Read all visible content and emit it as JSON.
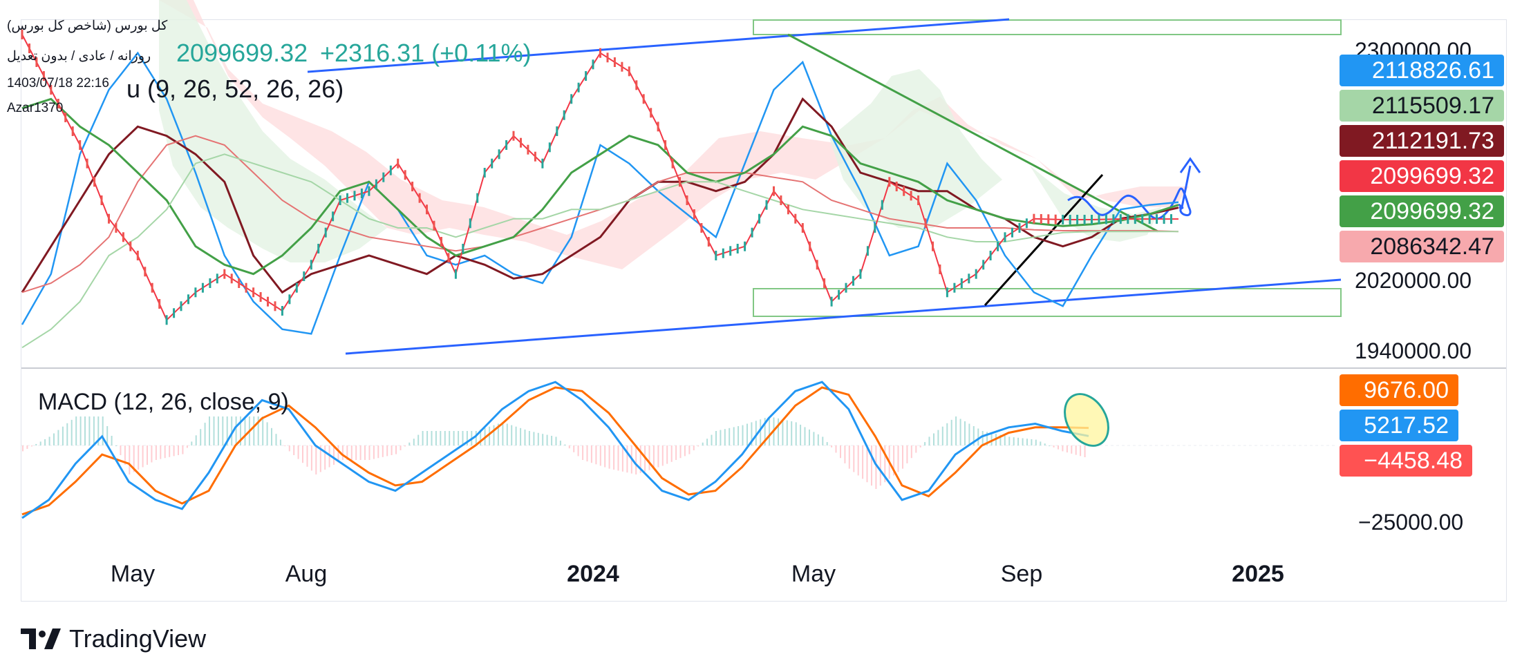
{
  "header": {
    "symbol_fa": "(کل بورس (شاخص کل بورس",
    "interval_fa": "روزانه / عادی / بدون تعدیل",
    "datetime": "1403/07/18 22:16",
    "author": "Azar1370",
    "price": "2099699.32",
    "change": "+2316.31 (+0.11%)",
    "ichimoku_label": "u (9, 26, 52, 26, 26)",
    "macd_label": "MACD (12, 26, close, 9)"
  },
  "price_axis": {
    "ticks": [
      "2300000.00",
      "2020000.00",
      "1940000.00"
    ],
    "badges": [
      {
        "value": "2118826.61",
        "color": "#2196f3"
      },
      {
        "value": "2115509.17",
        "color": "#a5d6a7"
      },
      {
        "value": "2112191.73",
        "color": "#801922"
      },
      {
        "value": "2099699.32",
        "color": "#f23645"
      },
      {
        "value": "2099699.32",
        "color": "#43a047"
      },
      {
        "value": "2086342.47",
        "color": "#f7a9ad"
      }
    ]
  },
  "macd_axis": {
    "ticks": [
      "−25000.00"
    ],
    "badges": [
      {
        "value": "9676.00",
        "color": "#ff6d00"
      },
      {
        "value": "5217.52",
        "color": "#2196f3"
      },
      {
        "value": "−4458.48",
        "color": "#ff5252"
      }
    ]
  },
  "time_axis": {
    "labels": [
      {
        "text": "May",
        "bold": false
      },
      {
        "text": "Aug",
        "bold": false
      },
      {
        "text": "2024",
        "bold": true
      },
      {
        "text": "May",
        "bold": false
      },
      {
        "text": "Sep",
        "bold": false
      },
      {
        "text": "2025",
        "bold": true
      }
    ]
  },
  "brand": {
    "name": "TradingView"
  },
  "chart_data": {
    "type": "line",
    "xlabel": "",
    "ylabel": "",
    "series": [
      {
        "values": [
          1985000,
          2040000,
          2170000,
          2240000,
          2280000,
          2230000,
          2150000,
          2060000,
          2010000,
          1980000,
          1975000,
          2060000,
          2140000,
          2110000,
          2060000,
          2050000,
          2060000,
          2040000,
          2030000,
          2080000,
          2180000,
          2160000,
          2130000,
          2105000,
          2080000,
          2160000,
          2240000,
          2270000,
          2190000,
          2130000,
          2060000,
          2070000,
          2160000,
          2120000,
          2060000,
          2020000,
          2005000,
          2060000,
          2110000,
          2115000,
          2118000
        ]
      },
      {
        "values": [
          2020000,
          2070000,
          2120000,
          2170000,
          2200000,
          2190000,
          2170000,
          2140000,
          2060000,
          2020000,
          2040000,
          2050000,
          2060000,
          2050000,
          2040000,
          2060000,
          2050000,
          2035000,
          2040000,
          2060000,
          2080000,
          2120000,
          2140000,
          2140000,
          2130000,
          2140000,
          2170000,
          2230000,
          2200000,
          2150000,
          2140000,
          2130000,
          2130000,
          2110000,
          2100000,
          2080000,
          2070000,
          2080000,
          2100000,
          2105000,
          2112000
        ]
      },
      {
        "values": [
          2020000,
          2030000,
          2050000,
          2080000,
          2140000,
          2180000,
          2190000,
          2180000,
          2150000,
          2120000,
          2100000,
          2090000,
          2080000,
          2075000,
          2070000,
          2065000,
          2070000,
          2080000,
          2090000,
          2100000,
          2110000,
          2120000,
          2140000,
          2150000,
          2150000,
          2150000,
          2145000,
          2140000,
          2120000,
          2110000,
          2100000,
          2095000,
          2090000,
          2090000,
          2090000,
          2088000,
          2087000,
          2087000,
          2087000,
          2087000,
          2086000
        ]
      },
      {
        "values": [
          2220000,
          2230000,
          2200000,
          2180000,
          2150000,
          2120000,
          2070000,
          2050000,
          2040000,
          2060000,
          2090000,
          2130000,
          2140000,
          2110000,
          2080000,
          2060000,
          2070000,
          2080000,
          2110000,
          2150000,
          2170000,
          2190000,
          2180000,
          2150000,
          2140000,
          2150000,
          2170000,
          2200000,
          2190000,
          2160000,
          2150000,
          2140000,
          2120000,
          2110000,
          2100000,
          2095000,
          2092000,
          2094000,
          2098000,
          2105000,
          2115000
        ]
      },
      {
        "values": [
          1960000,
          1980000,
          2010000,
          2060000,
          2080000,
          2110000,
          2160000,
          2170000,
          2160000,
          2150000,
          2140000,
          2120000,
          2100000,
          2090000,
          2090000,
          2080000,
          2090000,
          2100000,
          2100000,
          2110000,
          2110000,
          2120000,
          2130000,
          2140000,
          2140000,
          2130000,
          2120000,
          2110000,
          2105000,
          2100000,
          2095000,
          2090000,
          2080000,
          2075000,
          2075000,
          2080000,
          2085000,
          2086000,
          2086000,
          2086000,
          2086000
        ]
      },
      {
        "values": [
          2300000,
          2240000,
          2180000,
          2100000,
          2060000,
          1990000,
          2020000,
          2040000,
          2020000,
          2000000,
          2050000,
          2120000,
          2130000,
          2160000,
          2110000,
          2040000,
          2150000,
          2190000,
          2160000,
          2230000,
          2280000,
          2260000,
          2200000,
          2120000,
          2060000,
          2070000,
          2130000,
          2090000,
          2010000,
          2040000,
          2140000,
          2120000,
          2020000,
          2040000,
          2080000,
          2100000,
          2099000,
          2099000,
          2099700,
          2099700,
          2099700
        ]
      }
    ],
    "macd": [
      -40000,
      -30000,
      -10000,
      5000,
      -20000,
      -30000,
      -35000,
      -15000,
      10000,
      25000,
      20000,
      0,
      -10000,
      -20000,
      -25000,
      -15000,
      -5000,
      5000,
      20000,
      30000,
      35000,
      25000,
      10000,
      -10000,
      -25000,
      -30000,
      -20000,
      -5000,
      15000,
      30000,
      35000,
      20000,
      -10000,
      -30000,
      -25000,
      -5000,
      5000,
      10000,
      12000,
      8000,
      5218
    ],
    "signal": [
      -38000,
      -33000,
      -20000,
      -5000,
      -10000,
      -25000,
      -32000,
      -25000,
      0,
      15000,
      22000,
      10000,
      -5000,
      -15000,
      -22000,
      -20000,
      -10000,
      0,
      12000,
      25000,
      32000,
      30000,
      18000,
      0,
      -18000,
      -27000,
      -25000,
      -12000,
      5000,
      22000,
      32000,
      28000,
      5000,
      -22000,
      -28000,
      -15000,
      0,
      7000,
      10000,
      10000,
      9676
    ],
    "histogram_last": -4458.48,
    "ylim": [
      1940000,
      2300000
    ]
  }
}
